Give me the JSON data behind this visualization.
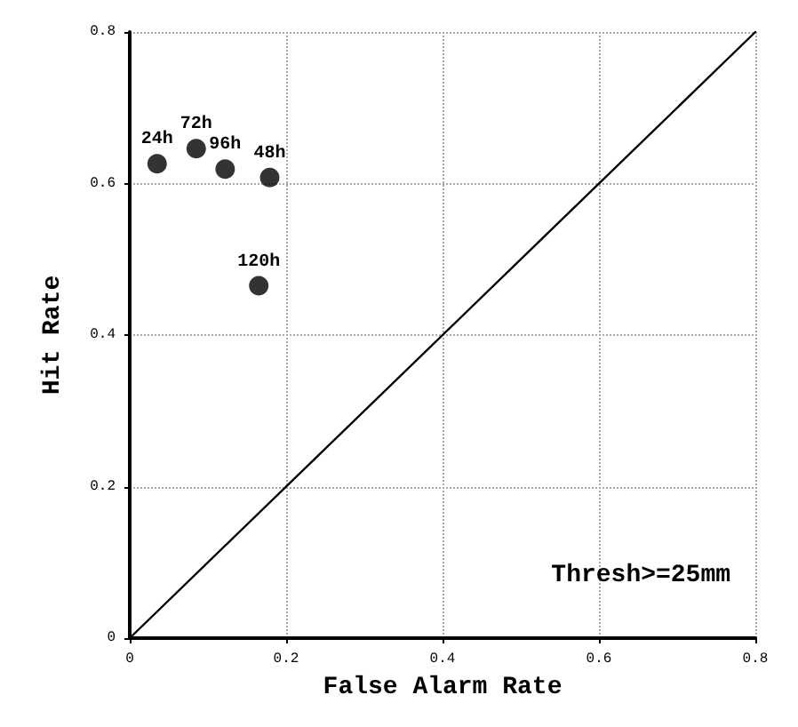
{
  "chart_data": {
    "type": "scatter",
    "xlabel": "False Alarm Rate",
    "ylabel": "Hit Rate",
    "xlim": [
      0,
      0.8
    ],
    "xticks": [
      0,
      0.2,
      0.4,
      0.6,
      0.8
    ],
    "ylim": [
      0,
      0.8
    ],
    "yticks": [
      0,
      0.2,
      0.4,
      0.6,
      0.8
    ],
    "grid": true,
    "marker": "circle",
    "series": [
      {
        "color": "#000000",
        "x": [
          0.035,
          0.085,
          0.122,
          0.179,
          0.165
        ],
        "values": [
          0.626,
          0.646,
          0.619,
          0.608,
          0.465
        ]
      },
      {
        "type": "line",
        "color": "#000000",
        "marker": "none",
        "x": [
          0,
          0.8
        ],
        "values": [
          0,
          0.8
        ]
      }
    ],
    "annotations": [
      {
        "text": "24h",
        "x": 0.035,
        "y": 0.626
      },
      {
        "text": "72h",
        "x": 0.085,
        "y": 0.646
      },
      {
        "text": "96h",
        "x": 0.122,
        "y": 0.619
      },
      {
        "text": "48h",
        "x": 0.179,
        "y": 0.608
      },
      {
        "text": "120h",
        "x": 0.165,
        "y": 0.465
      },
      "Thresh>=25mm"
    ]
  }
}
